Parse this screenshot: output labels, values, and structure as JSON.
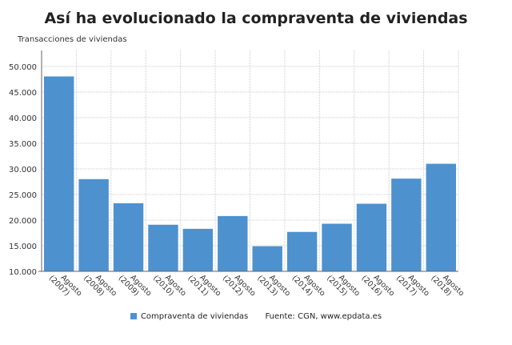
{
  "chart_data": {
    "type": "bar",
    "title": "Así ha evolucionado la compraventa de viviendas",
    "ylabel": "Transacciones de viviendas",
    "xlabel": "",
    "categories": [
      "Agosto (2007)",
      "Agosto (2008)",
      "Agosto (2009)",
      "Agosto (2010)",
      "Agosto (2011)",
      "Agosto (2012)",
      "Agosto (2013)",
      "Agosto (2014)",
      "Agosto (2015)",
      "Agosto (2016)",
      "Agosto (2017)",
      "Agosto (2018)"
    ],
    "series": [
      {
        "name": "Compraventa de viviendas",
        "values": [
          48050,
          28000,
          23300,
          19100,
          18300,
          20800,
          14900,
          17700,
          19300,
          23200,
          28100,
          31000
        ],
        "color": "#4e91cf"
      }
    ],
    "ylim": [
      10000,
      52000
    ],
    "yticks": [
      "10.000",
      "15.000",
      "20.000",
      "25.000",
      "30.000",
      "35.000",
      "40.000",
      "45.000",
      "50.000"
    ],
    "grid": true,
    "legend": "bottom",
    "source": "Fuente: CGN, www.epdata.es"
  }
}
